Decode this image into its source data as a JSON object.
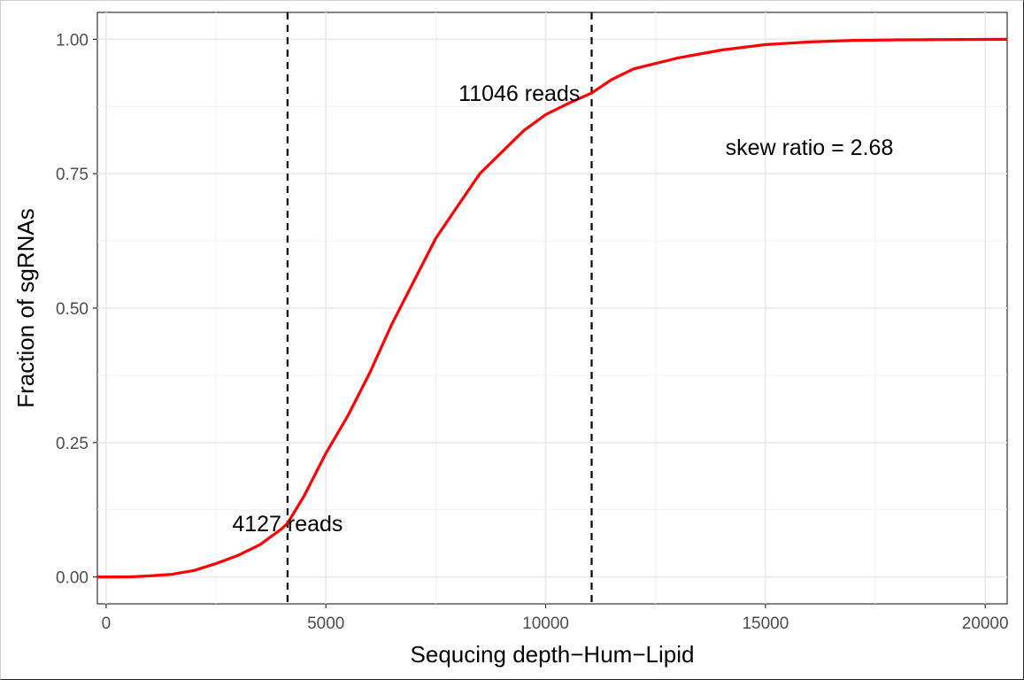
{
  "chart_data": {
    "type": "line",
    "title": "",
    "xlabel": "Sequcing depth−Hum−Lipid",
    "ylabel": "Fraction of sgRNAs",
    "xlim": [
      -200,
      20500
    ],
    "ylim": [
      -0.05,
      1.05
    ],
    "x_ticks": [
      0,
      5000,
      10000,
      15000,
      20000
    ],
    "x_tick_labels": [
      "0",
      "5000",
      "10000",
      "15000",
      "20000"
    ],
    "y_ticks": [
      0,
      0.25,
      0.5,
      0.75,
      1.0
    ],
    "y_tick_labels": [
      "0.00",
      "0.25",
      "0.50",
      "0.75",
      "1.00"
    ],
    "grid": true,
    "line_color": "#ff0000",
    "series": [
      {
        "x": [
          -200,
          500,
          1000,
          1500,
          2000,
          2500,
          3000,
          3500,
          4000,
          4127,
          4500,
          5000,
          5500,
          6000,
          6500,
          7000,
          7500,
          8000,
          8500,
          9000,
          9500,
          10000,
          10500,
          11046,
          11500,
          12000,
          12500,
          13000,
          14000,
          15000,
          16000,
          17000,
          18000,
          20500
        ],
        "y": [
          0.0,
          0.0,
          0.002,
          0.005,
          0.012,
          0.025,
          0.04,
          0.06,
          0.09,
          0.1,
          0.15,
          0.23,
          0.3,
          0.38,
          0.47,
          0.55,
          0.63,
          0.69,
          0.75,
          0.79,
          0.83,
          0.86,
          0.88,
          0.9,
          0.925,
          0.945,
          0.955,
          0.965,
          0.98,
          0.99,
          0.995,
          0.998,
          0.999,
          1.0
        ]
      }
    ],
    "vlines": [
      4127,
      11046
    ],
    "annotations": [
      {
        "text": "4127 reads",
        "x": 4127,
        "y": 0.1
      },
      {
        "text": "11046 reads",
        "x": 9400,
        "y": 0.9
      },
      {
        "text": "skew ratio = 2.68",
        "x": 16000,
        "y": 0.8
      }
    ]
  }
}
